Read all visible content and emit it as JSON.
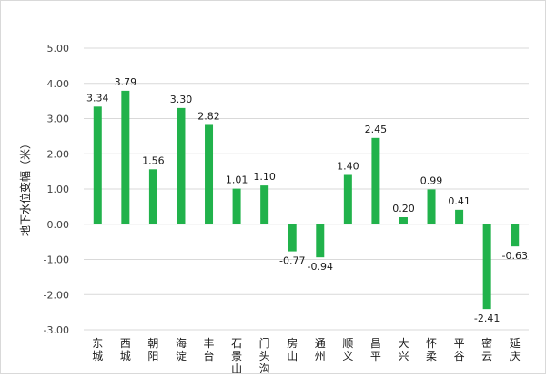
{
  "chart_data": {
    "type": "bar",
    "title": "",
    "xlabel": "",
    "ylabel": "地下水位变幅（米）",
    "ylim": [
      -3.0,
      5.0
    ],
    "yticks": [
      "5.00",
      "4.00",
      "3.00",
      "2.00",
      "1.00",
      "0.00",
      "-1.00",
      "-2.00",
      "-3.00"
    ],
    "ytick_values": [
      5,
      4,
      3,
      2,
      1,
      0,
      -1,
      -2,
      -3
    ],
    "categories": [
      "东城",
      "西城",
      "朝阳",
      "海淀",
      "丰台",
      "石景山",
      "门头沟",
      "房山",
      "通州",
      "顺义",
      "昌平",
      "大兴",
      "怀柔",
      "平谷",
      "密云",
      "延庆"
    ],
    "values": [
      3.34,
      3.79,
      1.56,
      3.3,
      2.82,
      1.01,
      1.1,
      -0.77,
      -0.94,
      1.4,
      2.45,
      0.2,
      0.99,
      0.41,
      -2.41,
      -0.63
    ],
    "value_labels": [
      "3.34",
      "3.79",
      "1.56",
      "3.30",
      "2.82",
      "1.01",
      "1.10",
      "-0.77",
      "-0.94",
      "1.40",
      "2.45",
      "0.20",
      "0.99",
      "0.41",
      "-2.41",
      "-0.63"
    ],
    "gridlines": true,
    "colors": {
      "bar": "#21b24b",
      "grid": "#d9d9d9",
      "text": "#1a1a1a"
    }
  }
}
